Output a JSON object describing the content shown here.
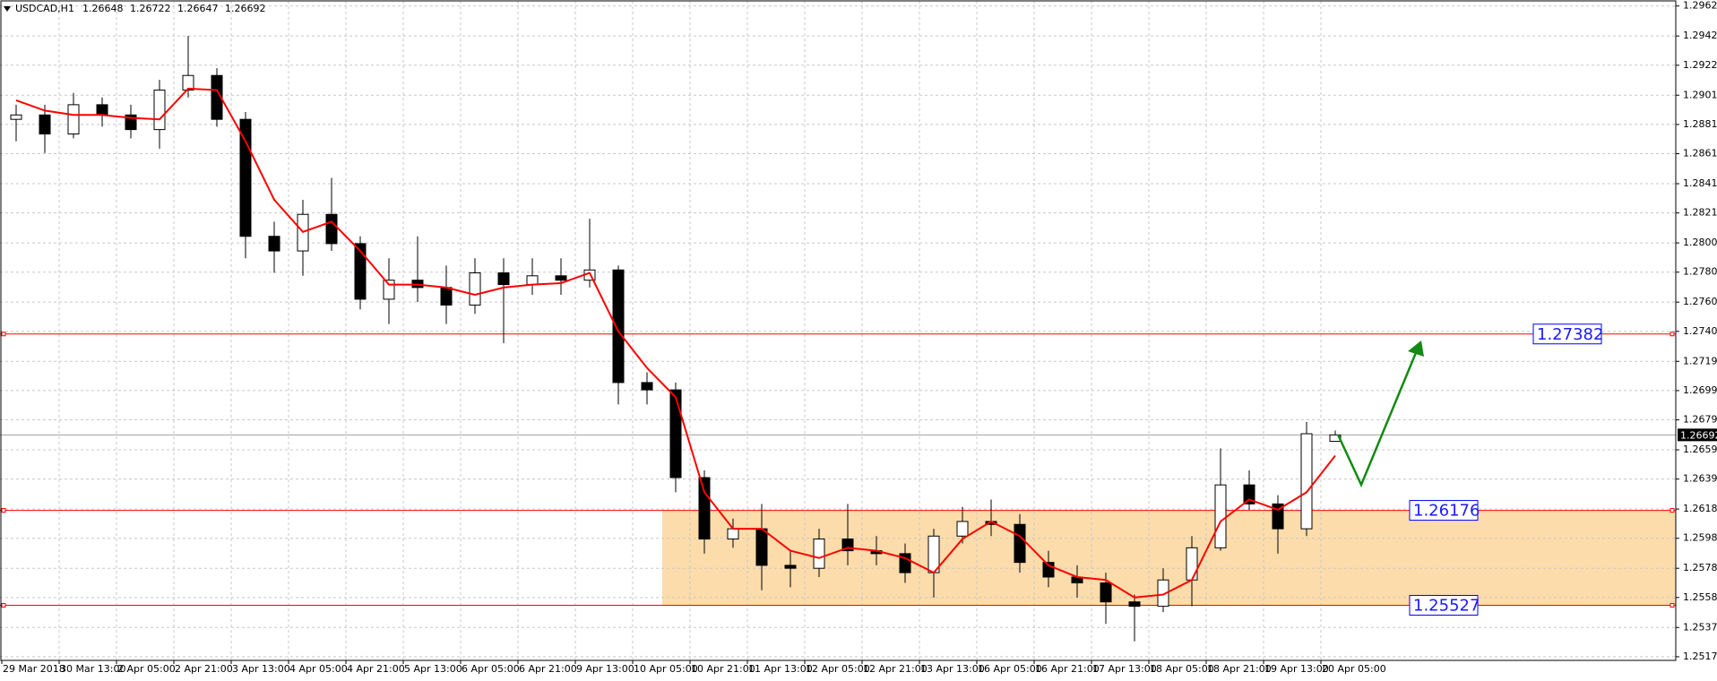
{
  "chart_data": {
    "type": "candlestick",
    "title": "USDCAD,H1",
    "categories": [
      "29 Mar 2018",
      null,
      "30 Mar 13:00",
      null,
      "2 Apr 05:00",
      null,
      "2 Apr 21:00",
      null,
      "3 Apr 13:00",
      null,
      "4 Apr 05:00",
      null,
      "4 Apr 21:00",
      null,
      "5 Apr 13:00",
      null,
      "6 Apr 05:00",
      null,
      "6 Apr 21:00",
      null,
      "9 Apr 13:00",
      null,
      "10 Apr 05:00",
      null,
      "10 Apr 21:00",
      null,
      "11 Apr 13:00",
      null,
      "12 Apr 05:00",
      null,
      "12 Apr 21:00",
      null,
      "13 Apr 13:00",
      null,
      "16 Apr 05:00",
      null,
      "16 Apr 21:00",
      null,
      "17 Apr 13:00",
      null,
      "18 Apr 05:00",
      null,
      "18 Apr 21:00",
      null,
      "19 Apr 13:00",
      null,
      "20 Apr 05:00"
    ],
    "open": [
      1.2885,
      1.2888,
      1.2875,
      1.2895,
      1.2888,
      1.2878,
      1.2905,
      1.2915,
      1.2885,
      1.2805,
      1.2795,
      1.282,
      1.28,
      1.2762,
      1.2775,
      1.277,
      1.2758,
      1.278,
      1.2772,
      1.2778,
      1.2775,
      1.2782,
      1.2705,
      1.27,
      1.264,
      1.2598,
      1.2605,
      1.258,
      1.2578,
      1.2598,
      1.259,
      1.2588,
      1.2575,
      1.26,
      1.261,
      1.2608,
      1.2582,
      1.2572,
      1.2568,
      1.2555,
      1.2552,
      1.257,
      1.2592,
      1.2635,
      1.2622,
      1.2605,
      1.26648
    ],
    "high": [
      1.2895,
      1.2895,
      1.2903,
      1.29,
      1.2895,
      1.2912,
      1.2942,
      1.292,
      1.289,
      1.2815,
      1.283,
      1.2845,
      1.2805,
      1.279,
      1.2805,
      1.2785,
      1.279,
      1.279,
      1.279,
      1.279,
      1.2817,
      1.2785,
      1.2712,
      1.2705,
      1.2645,
      1.2612,
      1.2622,
      1.259,
      1.2605,
      1.2622,
      1.26,
      1.2595,
      1.2605,
      1.262,
      1.2625,
      1.2615,
      1.259,
      1.258,
      1.2575,
      1.256,
      1.2578,
      1.26,
      1.266,
      1.2645,
      1.2628,
      1.2678,
      1.26722
    ],
    "low": [
      1.287,
      1.2862,
      1.2872,
      1.288,
      1.2872,
      1.2865,
      1.29,
      1.288,
      1.279,
      1.278,
      1.2778,
      1.2795,
      1.2755,
      1.2745,
      1.276,
      1.2745,
      1.2752,
      1.2732,
      1.2765,
      1.2765,
      1.277,
      1.269,
      1.269,
      1.263,
      1.2588,
      1.2592,
      1.2563,
      1.2565,
      1.2572,
      1.258,
      1.258,
      1.2568,
      1.2558,
      1.2595,
      1.26,
      1.2575,
      1.2565,
      1.2558,
      1.254,
      1.2528,
      1.2548,
      1.2552,
      1.259,
      1.2618,
      1.2588,
      1.26,
      1.26647
    ],
    "close": [
      1.2888,
      1.2875,
      1.2895,
      1.2888,
      1.2878,
      1.2905,
      1.2915,
      1.2885,
      1.2805,
      1.2795,
      1.282,
      1.28,
      1.2762,
      1.2775,
      1.277,
      1.2758,
      1.278,
      1.2772,
      1.2778,
      1.2775,
      1.2782,
      1.2705,
      1.27,
      1.264,
      1.2598,
      1.2605,
      1.258,
      1.2578,
      1.2598,
      1.259,
      1.2588,
      1.2575,
      1.26,
      1.261,
      1.2608,
      1.2582,
      1.2572,
      1.2568,
      1.2555,
      1.2552,
      1.257,
      1.2592,
      1.2635,
      1.2622,
      1.2605,
      1.267,
      1.26692
    ],
    "ma_values": [
      1.2898,
      1.2891,
      1.2888,
      1.2888,
      1.2886,
      1.2885,
      1.2906,
      1.2905,
      1.287,
      1.283,
      1.2808,
      1.2815,
      1.2795,
      1.2772,
      1.2772,
      1.277,
      1.2765,
      1.277,
      1.2772,
      1.2773,
      1.278,
      1.274,
      1.2715,
      1.2695,
      1.263,
      1.2605,
      1.2605,
      1.259,
      1.2585,
      1.2592,
      1.259,
      1.2585,
      1.2575,
      1.2598,
      1.261,
      1.26,
      1.258,
      1.2572,
      1.257,
      1.2558,
      1.256,
      1.257,
      1.261,
      1.2625,
      1.2618,
      1.263,
      1.2655
    ],
    "ma_color": "#ff0000",
    "hlines": [
      1.27382,
      1.26176,
      1.25527
    ],
    "hline_color": "#ff0000",
    "zone_color": "#fcdcaa",
    "ylim": [
      1.2515,
      1.2966
    ],
    "yticks": [
      1.29625,
      {
        "value": 1.2942,
        "label": "1.29420"
      },
      {
        "value": 1.2922,
        "label": "1.29220"
      },
      1.29015,
      1.28815,
      1.28615,
      {
        "value": 1.2841,
        "label": "1.28410"
      },
      {
        "value": 1.2821,
        "label": "1.28210"
      },
      1.28005,
      1.27805,
      {
        "value": 1.276,
        "label": "1.27600"
      },
      {
        "value": 1.274,
        "label": "1.27400"
      },
      1.27195,
      1.26995,
      1.26795,
      {
        "value": 1.2659,
        "label": "1.26590"
      },
      {
        "value": 1.2639,
        "label": "1.26390"
      },
      1.26185,
      1.25985,
      {
        "value": 1.2578,
        "label": "1.25780"
      },
      {
        "value": 1.2558,
        "label": "1.25580"
      },
      1.25375,
      1.25175
    ],
    "grid": true
  }
}
